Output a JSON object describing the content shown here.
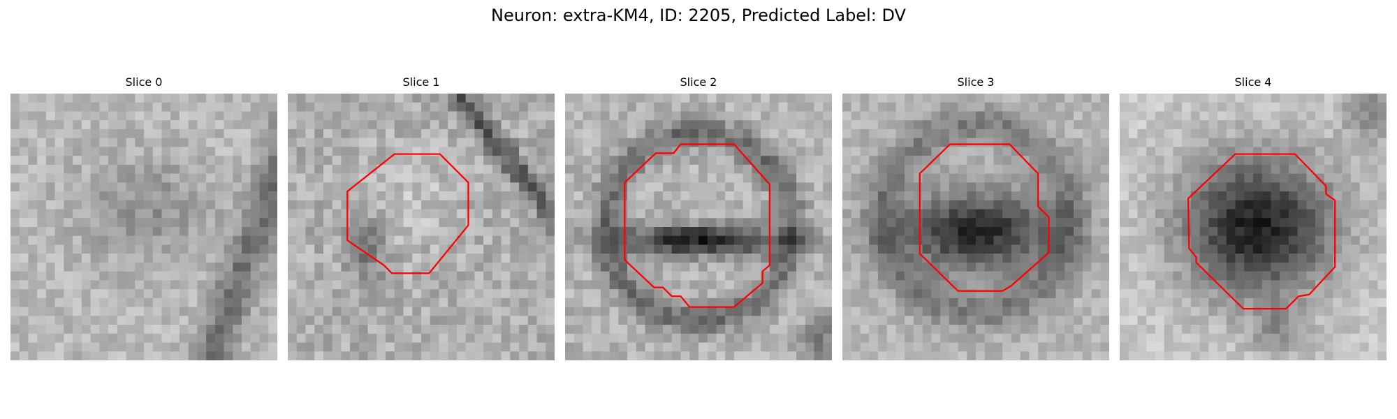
{
  "figure": {
    "title": "Neuron: extra-KM4, ID: 2205, Predicted Label: DV"
  },
  "panels": [
    {
      "title": "Slice 0",
      "has_contour": false
    },
    {
      "title": "Slice 1",
      "has_contour": true
    },
    {
      "title": "Slice 2",
      "has_contour": true
    },
    {
      "title": "Slice 3",
      "has_contour": true
    },
    {
      "title": "Slice 4",
      "has_contour": true
    }
  ],
  "colors": {
    "background": "#ffffff",
    "contour": "#ff0000",
    "image_colormap": "grayscale"
  }
}
